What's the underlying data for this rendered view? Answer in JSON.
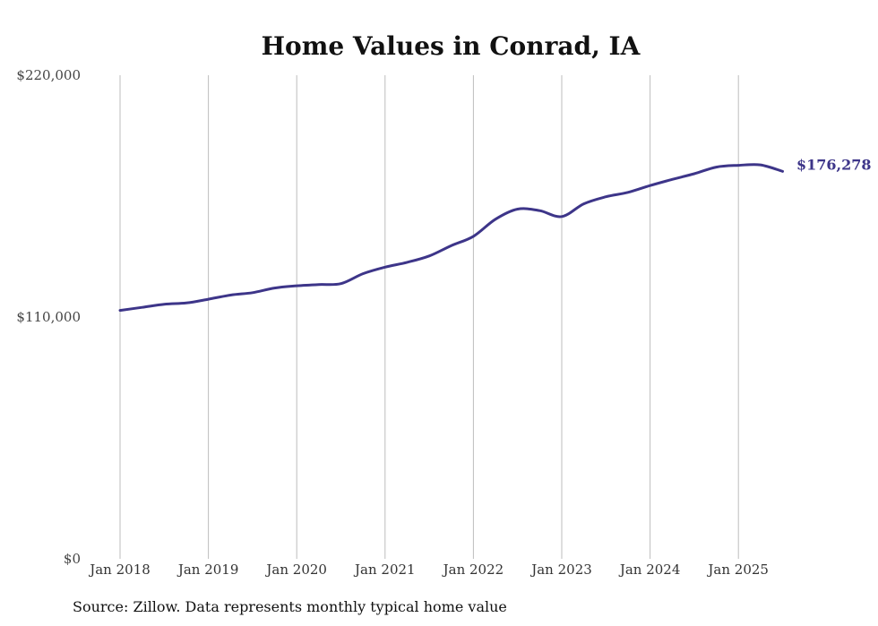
{
  "chart_data": {
    "type": "line",
    "title": "Home Values in Conrad, IA",
    "source": "Source: Zillow. Data represents monthly typical home value",
    "ylim": [
      0,
      220000
    ],
    "y_ticks": [
      {
        "value": 0,
        "label": "$0"
      },
      {
        "value": 110000,
        "label": "$110,000"
      },
      {
        "value": 220000,
        "label": "$220,000"
      }
    ],
    "x_ticks": [
      "Jan 2018",
      "Jan 2019",
      "Jan 2020",
      "Jan 2021",
      "Jan 2022",
      "Jan 2023",
      "Jan 2024",
      "Jan 2025"
    ],
    "grid": "vertical",
    "line_color": "#3d3589",
    "end_label": "$176,278",
    "series": [
      {
        "x": [
          "2018-01",
          "2018-04",
          "2018-07",
          "2018-10",
          "2019-01",
          "2019-04",
          "2019-07",
          "2019-10",
          "2020-01",
          "2020-04",
          "2020-07",
          "2020-10",
          "2021-01",
          "2021-04",
          "2021-07",
          "2021-10",
          "2022-01",
          "2022-04",
          "2022-07",
          "2022-10",
          "2023-01",
          "2023-04",
          "2023-07",
          "2023-10",
          "2024-01",
          "2024-04",
          "2024-07",
          "2024-10",
          "2025-01",
          "2025-04",
          "2025-07"
        ],
        "values": [
          113000,
          114400,
          115800,
          116400,
          118100,
          120000,
          121100,
          123200,
          124200,
          124800,
          125200,
          129700,
          132700,
          134900,
          137800,
          142500,
          146700,
          154500,
          159100,
          158400,
          155700,
          161500,
          164700,
          166700,
          169800,
          172600,
          175200,
          178200,
          179000,
          179200,
          176278
        ]
      }
    ]
  }
}
